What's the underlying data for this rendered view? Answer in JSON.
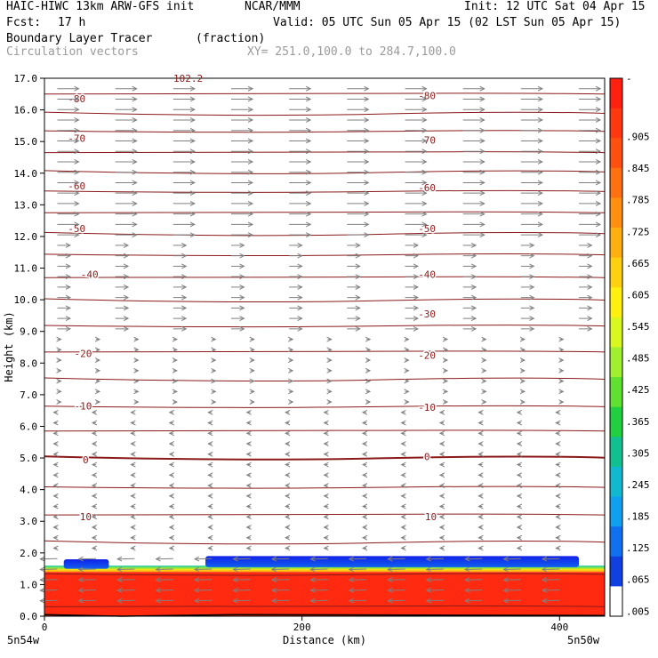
{
  "header": {
    "title": "HAIC-HIWC 13km ARW-GFS init",
    "org": "NCAR/MMM",
    "init": "Init: 12 UTC Sat 04 Apr 15",
    "fcst_label": "Fcst:",
    "fcst_value": "17 h",
    "valid": "Valid: 05 UTC Sun 05 Apr 15 (02 LST Sun 05 Apr 15)",
    "field": "Boundary Layer Tracer",
    "units": "(fraction)",
    "vectors": "Circulation vectors",
    "xy": "XY= 251.0,100.0 to 284.7,100.0"
  },
  "colors": {
    "contour": "#8b1a1a",
    "vector": "#808080",
    "tracer_high": "#ff2a10",
    "tracer_low": "#1020ff"
  },
  "chart_data": {
    "type": "heatmap",
    "title": "Boundary Layer Tracer",
    "xlabel": "Distance (km)",
    "ylabel": "Height (km)",
    "xlim": [
      0,
      435
    ],
    "ylim": [
      0,
      17
    ],
    "x_ticks": [
      "0",
      "200",
      "400"
    ],
    "x_end_labels": [
      "5n54w",
      "5n50w"
    ],
    "y_ticks": [
      "0.0",
      "1.0",
      "2.0",
      "3.0",
      "4.0",
      "5.0",
      "6.0",
      "7.0",
      "8.0",
      "9.0",
      "10.0",
      "11.0",
      "12.0",
      "13.0",
      "14.0",
      "15.0",
      "16.0",
      "17.0"
    ],
    "grid": false,
    "annotation_top": "102.2",
    "temperature_contours": {
      "interval": 10,
      "labels": [
        {
          "text": "-80",
          "x": 25,
          "height": 16.35
        },
        {
          "text": "-80",
          "x": 297,
          "height": 16.45
        },
        {
          "text": "-70",
          "x": 25,
          "height": 15.1
        },
        {
          "text": "-70",
          "x": 297,
          "height": 15.05
        },
        {
          "text": "-60",
          "x": 25,
          "height": 13.6
        },
        {
          "text": "-60",
          "x": 297,
          "height": 13.55
        },
        {
          "text": "-50",
          "x": 25,
          "height": 12.25
        },
        {
          "text": "-50",
          "x": 297,
          "height": 12.25
        },
        {
          "text": "-40",
          "x": 35,
          "height": 10.8
        },
        {
          "text": "-40",
          "x": 297,
          "height": 10.8
        },
        {
          "text": "-30",
          "x": 297,
          "height": 9.55
        },
        {
          "text": "-20",
          "x": 30,
          "height": 8.3
        },
        {
          "text": "-20",
          "x": 297,
          "height": 8.25
        },
        {
          "text": "-10",
          "x": 30,
          "height": 6.65
        },
        {
          "text": "-10",
          "x": 297,
          "height": 6.6
        },
        {
          "text": "0",
          "x": 32,
          "height": 4.95
        },
        {
          "text": "0",
          "x": 297,
          "height": 5.05
        },
        {
          "text": "10",
          "x": 32,
          "height": 3.15
        },
        {
          "text": "10",
          "x": 300,
          "height": 3.15
        }
      ],
      "line_heights": [
        0.3,
        1.3,
        2.3,
        3.2,
        4.05,
        4.97,
        5.85,
        6.6,
        7.45,
        8.35,
        9.15,
        9.95,
        10.7,
        11.4,
        12.05,
        12.75,
        13.4,
        14.0,
        14.65,
        15.3,
        15.85,
        16.5
      ]
    },
    "tracer": {
      "high_fraction_top_km": 1.4,
      "mid_gradient_top_km": 1.6,
      "low_fraction_layer": [
        {
          "x": [
            15,
            50
          ],
          "bottom": 1.5,
          "top": 1.8
        },
        {
          "x": [
            125,
            415
          ],
          "bottom": 1.55,
          "top": 1.9
        }
      ]
    },
    "colorbar": {
      "labels": [
        "-",
        ".905",
        ".845",
        ".785",
        ".725",
        ".665",
        ".605",
        ".545",
        ".485",
        ".425",
        ".365",
        ".305",
        ".245",
        ".185",
        ".125",
        ".065",
        ".005"
      ],
      "colors": [
        "#ff2010",
        "#ff3810",
        "#ff5010",
        "#ff7010",
        "#ff9010",
        "#ffb010",
        "#ffd010",
        "#fff010",
        "#d8f820",
        "#a0f030",
        "#60e030",
        "#20d040",
        "#10c090",
        "#10b8d0",
        "#10a0f0",
        "#1070f0",
        "#1040e0",
        "#ffffff"
      ]
    }
  }
}
